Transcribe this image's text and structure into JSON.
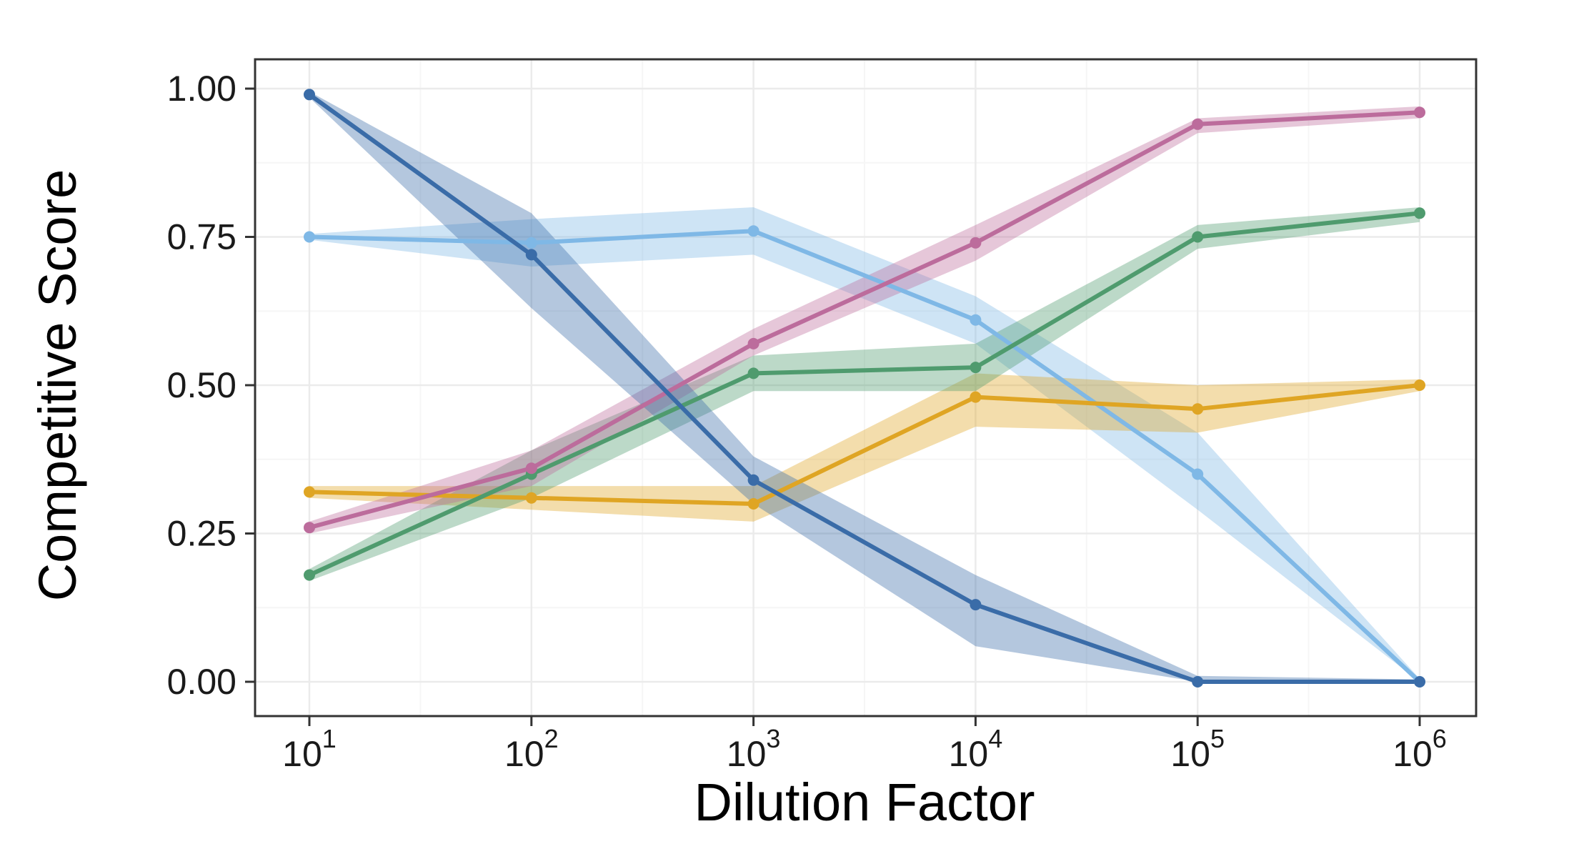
{
  "chart_data": {
    "type": "line",
    "title": "",
    "xlabel": "Dilution Factor",
    "ylabel": "Competitive Score",
    "x_scale": "log10",
    "x_tick_base": "10",
    "x_exponents": [
      1,
      2,
      3,
      4,
      5,
      6
    ],
    "x_values": [
      10,
      100,
      1000,
      10000,
      100000,
      1000000
    ],
    "y_ticks": [
      0,
      0.25,
      0.5,
      0.75,
      1.0
    ],
    "y_tick_labels": [
      "0.00",
      "0.25",
      "0.50",
      "0.75",
      "1.00"
    ],
    "ylim": [
      0,
      1
    ],
    "grid": true,
    "legend": "none",
    "panel_border_color": "#333333",
    "grid_major_color": "#ebebeb",
    "grid_minor_color": "#f6f6f6",
    "ribbon_opacity": 0.38,
    "series": [
      {
        "name": "light-blue",
        "color": "#7fb8e6",
        "values": [
          0.75,
          0.74,
          0.76,
          0.61,
          0.35,
          0.0
        ],
        "lower": [
          0.745,
          0.7,
          0.72,
          0.57,
          0.29,
          0.0
        ],
        "upper": [
          0.755,
          0.78,
          0.8,
          0.65,
          0.42,
          0.005
        ]
      },
      {
        "name": "gold",
        "color": "#dfa524",
        "values": [
          0.32,
          0.31,
          0.3,
          0.48,
          0.46,
          0.5
        ],
        "lower": [
          0.31,
          0.29,
          0.27,
          0.43,
          0.42,
          0.49
        ],
        "upper": [
          0.33,
          0.33,
          0.33,
          0.52,
          0.5,
          0.51
        ]
      },
      {
        "name": "green",
        "color": "#4f9b6e",
        "values": [
          0.18,
          0.35,
          0.52,
          0.53,
          0.75,
          0.79
        ],
        "lower": [
          0.17,
          0.31,
          0.49,
          0.49,
          0.73,
          0.775
        ],
        "upper": [
          0.19,
          0.39,
          0.55,
          0.57,
          0.77,
          0.8
        ]
      },
      {
        "name": "pink",
        "color": "#bc6c9c",
        "values": [
          0.26,
          0.36,
          0.57,
          0.74,
          0.94,
          0.96
        ],
        "lower": [
          0.25,
          0.33,
          0.55,
          0.71,
          0.925,
          0.95
        ],
        "upper": [
          0.27,
          0.39,
          0.595,
          0.77,
          0.95,
          0.97
        ]
      },
      {
        "name": "dark-blue",
        "color": "#3a6ca8",
        "values": [
          0.99,
          0.72,
          0.34,
          0.13,
          0.0,
          0.0
        ],
        "lower": [
          0.985,
          0.63,
          0.3,
          0.06,
          0.0,
          0.0
        ],
        "upper": [
          0.995,
          0.79,
          0.38,
          0.18,
          0.01,
          0.004
        ]
      }
    ]
  }
}
